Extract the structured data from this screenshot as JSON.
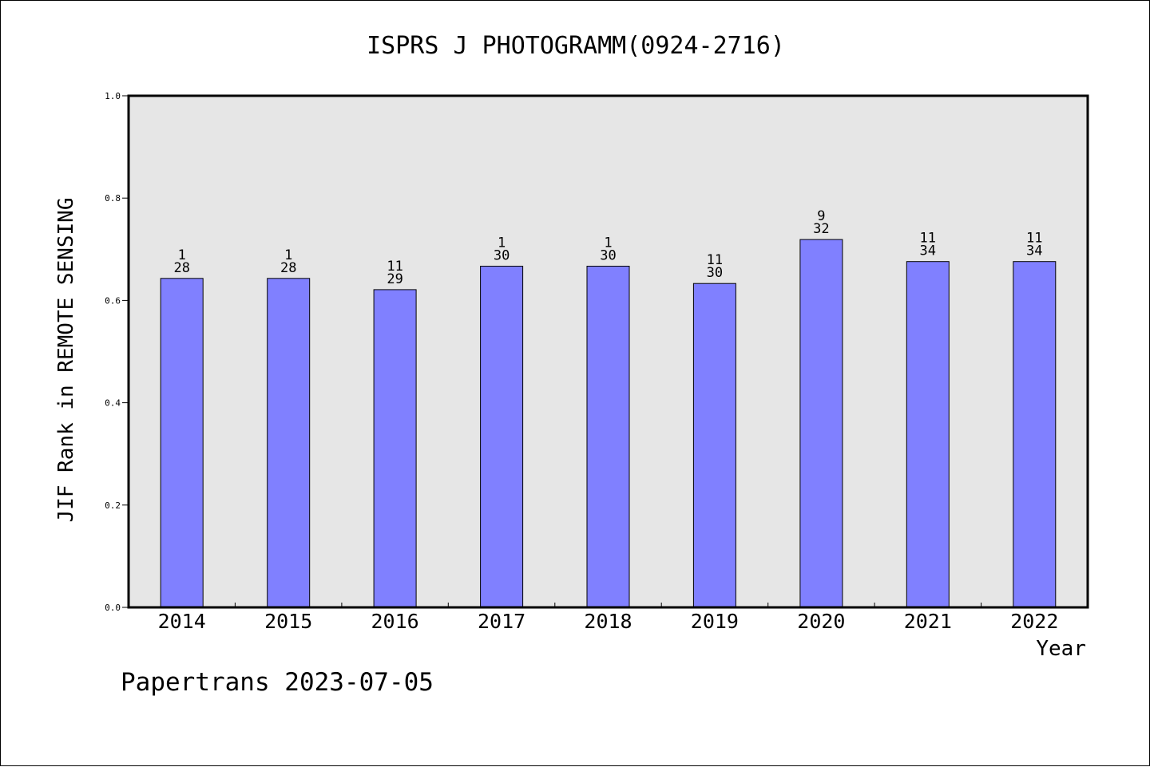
{
  "chart_data": {
    "type": "bar",
    "title": "ISPRS J PHOTOGRAMM(0924-2716)",
    "xlabel": "Year",
    "ylabel": "JIF Rank in REMOTE SENSING",
    "ylim": [
      0,
      1.0
    ],
    "yticks": [
      "0.0",
      "0.2",
      "0.4",
      "0.6",
      "0.8",
      "1.0"
    ],
    "grid": false,
    "categories": [
      "2014",
      "2015",
      "2016",
      "2017",
      "2018",
      "2019",
      "2020",
      "2021",
      "2022"
    ],
    "values": [
      0.643,
      0.643,
      0.621,
      0.667,
      0.667,
      0.633,
      0.719,
      0.676,
      0.676
    ],
    "bar_labels": [
      {
        "top": "1",
        "bottom": "28"
      },
      {
        "top": "1",
        "bottom": "28"
      },
      {
        "top": "11",
        "bottom": "29"
      },
      {
        "top": "1",
        "bottom": "30"
      },
      {
        "top": "1",
        "bottom": "30"
      },
      {
        "top": "11",
        "bottom": "30"
      },
      {
        "top": "9",
        "bottom": "32"
      },
      {
        "top": "11",
        "bottom": "34"
      },
      {
        "top": "11",
        "bottom": "34"
      }
    ],
    "colors": {
      "bar": "#8080ff",
      "plot_background": "#e6e6e6"
    }
  },
  "footer": "Papertrans 2023-07-05"
}
